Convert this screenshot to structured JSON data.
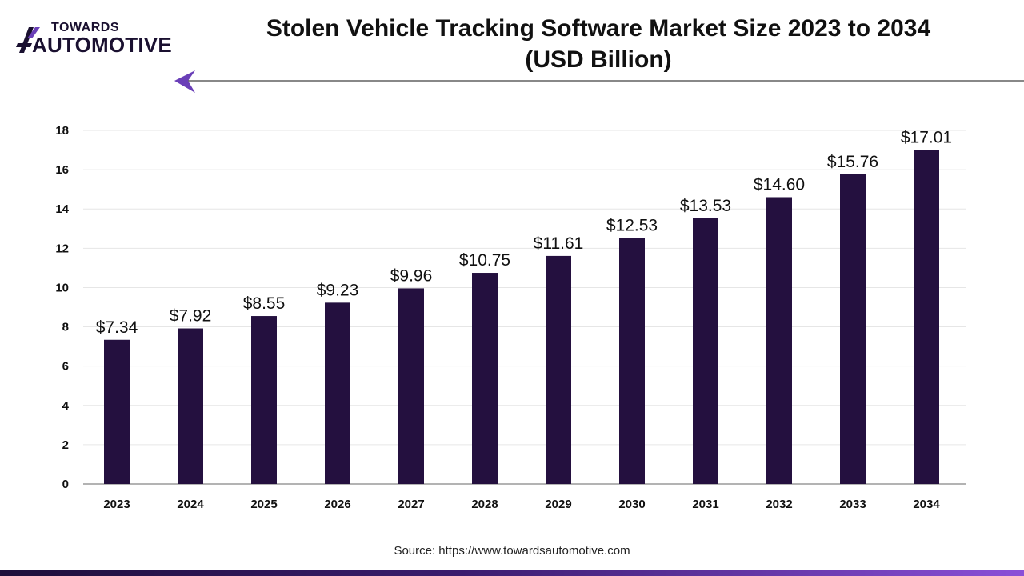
{
  "brand": {
    "line1": "TOWARDS",
    "line2": "AUTOMOTIVE",
    "accent_color": "#6a3fb8",
    "dark_color": "#1a1030",
    "icon": "logo-mark-icon"
  },
  "header": {
    "title_line1": "Stolen Vehicle Tracking Software Market Size 2023 to 2034",
    "title_line2": "(USD Billion)",
    "arrow_icon": "arrow-left-icon"
  },
  "chart_data": {
    "type": "bar",
    "title": "Stolen Vehicle Tracking Software Market Size 2023 to 2034 (USD Billion)",
    "xlabel": "",
    "ylabel": "",
    "categories": [
      "2023",
      "2024",
      "2025",
      "2026",
      "2027",
      "2028",
      "2029",
      "2030",
      "2031",
      "2032",
      "2033",
      "2034"
    ],
    "values": [
      7.34,
      7.92,
      8.55,
      9.23,
      9.96,
      10.75,
      11.61,
      12.53,
      13.53,
      14.6,
      15.76,
      17.01
    ],
    "value_labels": [
      "$7.34",
      "$7.92",
      "$8.55",
      "$9.23",
      "$9.96",
      "$10.75",
      "$11.61",
      "$12.53",
      "$13.53",
      "$14.60",
      "$15.76",
      "$17.01"
    ],
    "ylim": [
      0,
      18
    ],
    "yticks": [
      "0",
      "2",
      "4",
      "6",
      "8",
      "10",
      "12",
      "14",
      "16",
      "18"
    ],
    "grid": true,
    "legend": "none",
    "bar_color": "#24103f"
  },
  "footer": {
    "source": "Source: https://www.towardsautomotive.com"
  }
}
